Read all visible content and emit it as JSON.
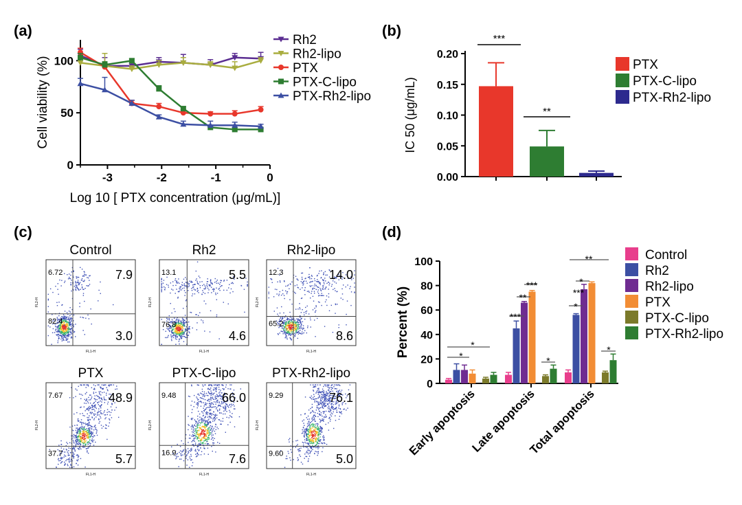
{
  "panel_labels": [
    "(a)",
    "(b)",
    "(c)",
    "(d)"
  ],
  "chart_data": [
    {
      "panel": "(a)",
      "type": "line",
      "xlabel": "Log 10 [ PTX concentration (μg/mL)]",
      "ylabel": "Cell viability (%)",
      "xlim": [
        -3.5,
        0
      ],
      "ylim": [
        0,
        120
      ],
      "xticks": [
        "-3",
        "-2",
        "-1",
        "0"
      ],
      "yticks": [
        "0",
        "50",
        "100"
      ],
      "x": [
        -3.5,
        -3.05,
        -2.55,
        -2.05,
        -1.6,
        -1.1,
        -0.65,
        -0.17
      ],
      "legend_position": "top-right",
      "series": [
        {
          "name": "Rh2",
          "color": "#5a2d91",
          "marker": "triangle-down",
          "values": [
            105,
            95,
            95,
            99,
            98,
            96,
            103,
            102
          ],
          "errors": [
            6,
            8,
            3,
            4,
            8,
            5,
            4,
            6
          ]
        },
        {
          "name": "Rh2-lipo",
          "color": "#a9ad3f",
          "marker": "triangle-down",
          "values": [
            98,
            95,
            92,
            96,
            98,
            96,
            93,
            100
          ],
          "errors": [
            4,
            12,
            3,
            4,
            5,
            3,
            6,
            3
          ]
        },
        {
          "name": "PTX",
          "color": "#e8372b",
          "marker": "circle",
          "values": [
            108,
            94,
            59,
            56,
            50,
            49,
            49,
            53
          ],
          "errors": [
            4,
            3,
            3,
            3,
            3,
            2,
            3,
            3
          ]
        },
        {
          "name": "PTX-C-lipo",
          "color": "#2e7d32",
          "marker": "square",
          "values": [
            103,
            96,
            100,
            73,
            54,
            36,
            34,
            34
          ],
          "errors": [
            4,
            3,
            2,
            3,
            2,
            2,
            2,
            2
          ]
        },
        {
          "name": "PTX-Rh2-lipo",
          "color": "#3c4fa3",
          "marker": "triangle-up",
          "values": [
            78,
            72,
            59,
            46,
            39,
            38,
            38,
            37
          ],
          "errors": [
            5,
            12,
            3,
            2,
            3,
            4,
            3,
            2
          ]
        }
      ]
    },
    {
      "panel": "(b)",
      "type": "bar",
      "ylabel": "IC 50 (μg/mL)",
      "ylim": [
        0,
        0.2
      ],
      "yticks": [
        "0.00",
        "0.05",
        "0.10",
        "0.15",
        "0.20"
      ],
      "categories": [
        "PTX",
        "PTX-C-lipo",
        "PTX-Rh2-lipo"
      ],
      "values": [
        0.147,
        0.049,
        0.006
      ],
      "errors": [
        0.038,
        0.026,
        0.003
      ],
      "colors": [
        "#e8372b",
        "#2e7d32",
        "#2d2a8e"
      ],
      "legend_position": "right",
      "significance": [
        {
          "label": "***",
          "from": 0,
          "to": 1,
          "y": 0.22
        },
        {
          "label": "**",
          "from": 1,
          "to": 2,
          "y": 0.095
        }
      ]
    },
    {
      "panel": "(c)",
      "type": "scatter",
      "subplots": [
        {
          "title": "Control",
          "upper_left": "6.72",
          "upper_right": "7.9",
          "lower_left": "82.4",
          "lower_right": "3.0"
        },
        {
          "title": "Rh2",
          "upper_left": "13.1",
          "upper_right": "5.5",
          "lower_left": "76.8",
          "lower_right": "4.6"
        },
        {
          "title": "Rh2-lipo",
          "upper_left": "12.3",
          "upper_right": "14.0",
          "lower_left": "65.2",
          "lower_right": "8.6"
        },
        {
          "title": "PTX",
          "upper_left": "7.67",
          "upper_right": "48.9",
          "lower_left": "37.7",
          "lower_right": "5.7"
        },
        {
          "title": "PTX-C-lipo",
          "upper_left": "9.48",
          "upper_right": "66.0",
          "lower_left": "16.9",
          "lower_right": "7.6"
        },
        {
          "title": "PTX-Rh2-lipo",
          "upper_left": "9.29",
          "upper_right": "76.1",
          "lower_left": "9.60",
          "lower_right": "5.0"
        }
      ],
      "xlabel": "FL1-H",
      "ylabel": "FL2-H"
    },
    {
      "panel": "(d)",
      "type": "bar",
      "ylabel": "Percent (%)",
      "ylim": [
        0,
        100
      ],
      "yticks": [
        "0",
        "20",
        "40",
        "60",
        "80",
        "100"
      ],
      "categories": [
        "Early apoptosis",
        "Late apoptosis",
        "Total apoptosis"
      ],
      "legend_position": "right",
      "series": [
        {
          "name": "Control",
          "color": "#e83e8c",
          "values": [
            3,
            7,
            9
          ],
          "errors": [
            1,
            2,
            2
          ]
        },
        {
          "name": "Rh2",
          "color": "#3c4fa3",
          "values": [
            11,
            45,
            56
          ],
          "errors": [
            5,
            6,
            1
          ]
        },
        {
          "name": "Rh2-lipo",
          "color": "#6f2c91",
          "values": [
            11,
            66,
            77
          ],
          "errors": [
            4,
            1,
            4
          ]
        },
        {
          "name": "PTX",
          "color": "#f28d35",
          "values": [
            8,
            75,
            82
          ],
          "errors": [
            3,
            1,
            1
          ]
        },
        {
          "name": "PTX-C-lipo",
          "color": "#7b7a2a",
          "values": [
            4,
            6,
            9
          ],
          "errors": [
            1,
            1,
            1
          ]
        },
        {
          "name": "PTX-Rh2-lipo",
          "color": "#2e7d32",
          "values": [
            7,
            12,
            19
          ],
          "errors": [
            2,
            3,
            5
          ]
        }
      ],
      "significance_labels": [
        "*",
        "*",
        "***",
        "**",
        "***",
        "*",
        "*",
        "***",
        "*",
        "**",
        "*"
      ]
    }
  ]
}
